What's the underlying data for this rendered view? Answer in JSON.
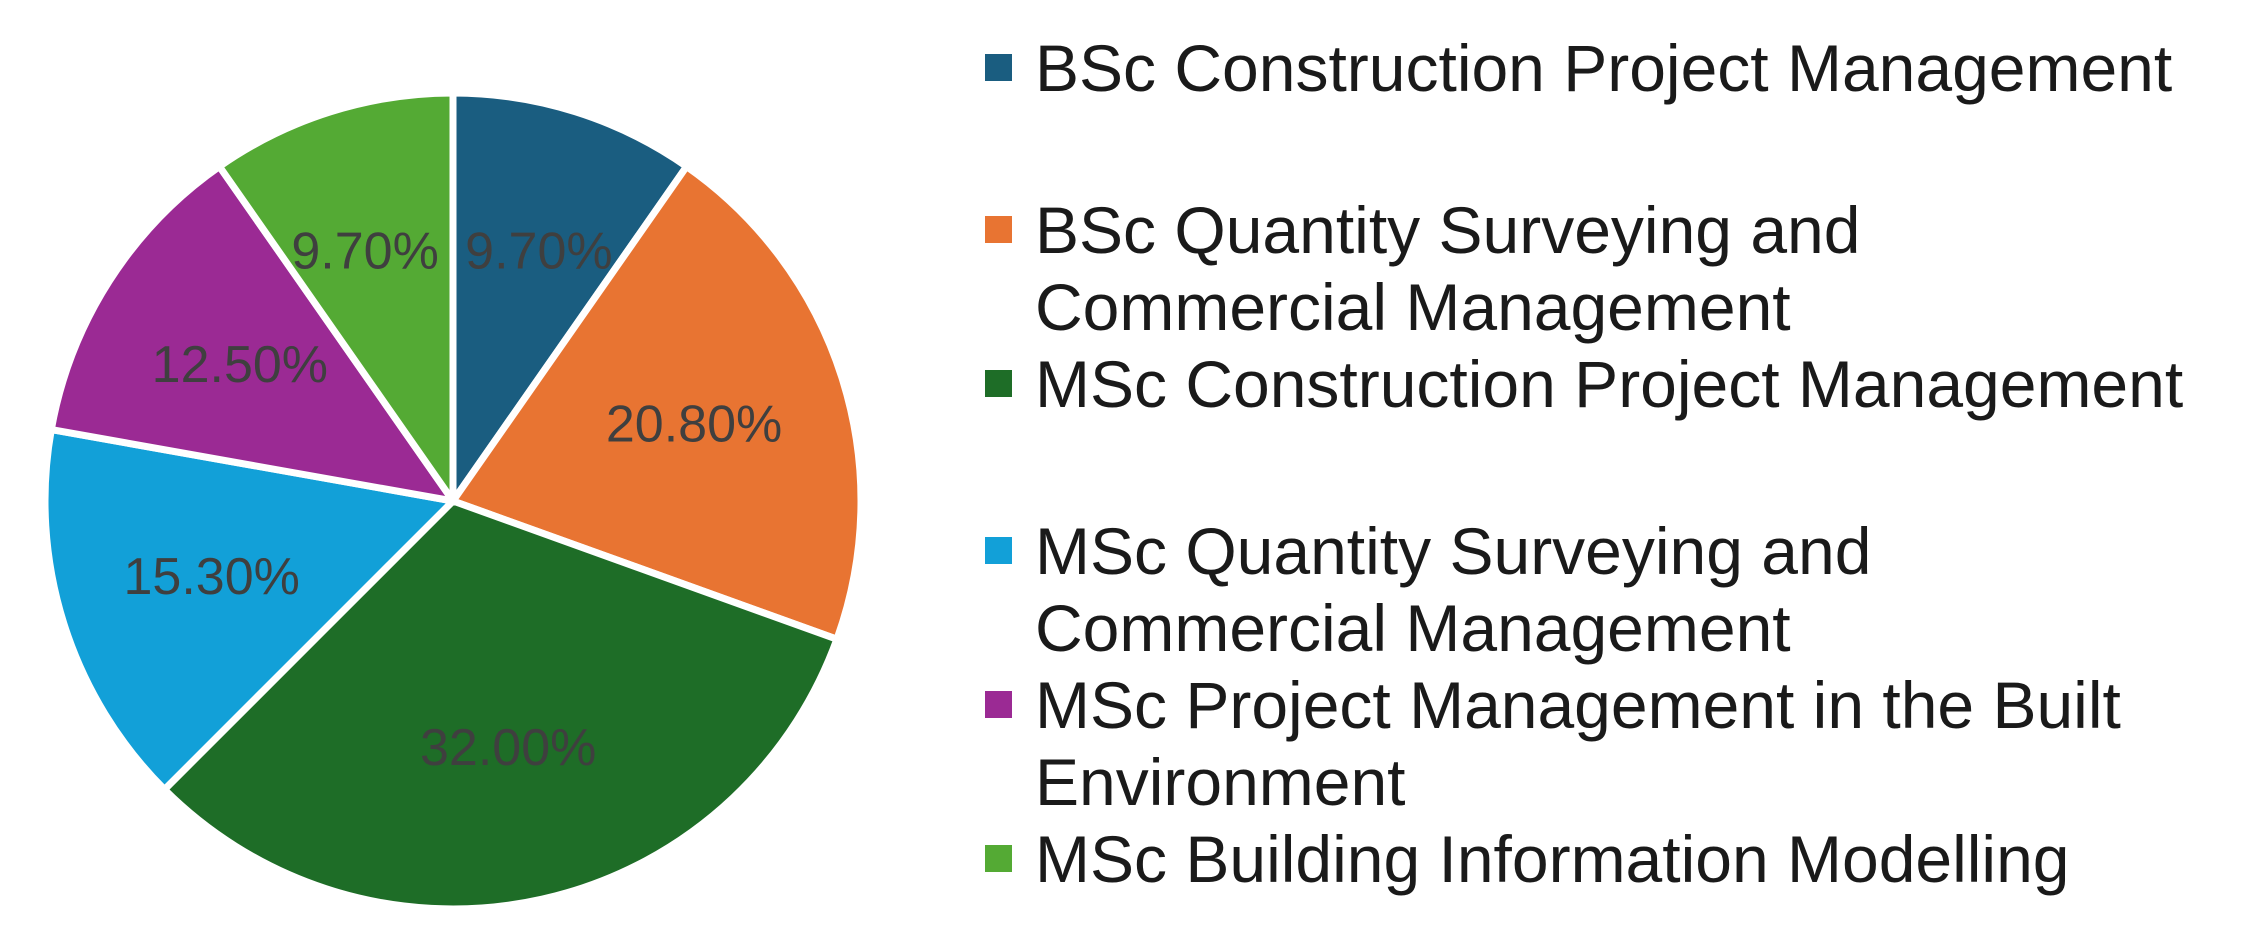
{
  "chart_data": {
    "type": "pie",
    "title": "",
    "slices": [
      {
        "label": "BSc Construction Project Management",
        "value": 9.7,
        "display": "9.70%",
        "color": "#1a5d80"
      },
      {
        "label": "BSc Quantity Surveying and Commercial Management",
        "value": 20.8,
        "display": "20.80%",
        "color": "#e87432"
      },
      {
        "label": "MSc Construction Project Management",
        "value": 32.0,
        "display": "32.00%",
        "color": "#1e6d27"
      },
      {
        "label": "MSc Quantity Surveying and Commercial Management",
        "value": 15.3,
        "display": "15.30%",
        "color": "#12a0d8"
      },
      {
        "label": "MSc Project Management in the Built Environment",
        "value": 12.5,
        "display": "12.50%",
        "color": "#9b2a94"
      },
      {
        "label": "MSc Building Information Modelling",
        "value": 9.7,
        "display": "9.70%",
        "color": "#54aa34"
      }
    ],
    "legend_position": "right"
  },
  "legend": {
    "items": [
      {
        "lines": [
          "BSc Construction Project Management"
        ],
        "color": "#1a5d80"
      },
      {
        "lines": [
          "BSc Quantity Surveying and",
          "Commercial Management"
        ],
        "color": "#e87432"
      },
      {
        "lines": [
          "MSc Construction Project Management"
        ],
        "color": "#1e6d27"
      },
      {
        "lines": [
          "MSc Quantity Surveying and",
          "Commercial Management"
        ],
        "color": "#12a0d8"
      },
      {
        "lines": [
          "MSc Project Management in the Built",
          "Environment"
        ],
        "color": "#9b2a94"
      },
      {
        "lines": [
          "MSc Building Information Modelling"
        ],
        "color": "#54aa34"
      }
    ]
  }
}
